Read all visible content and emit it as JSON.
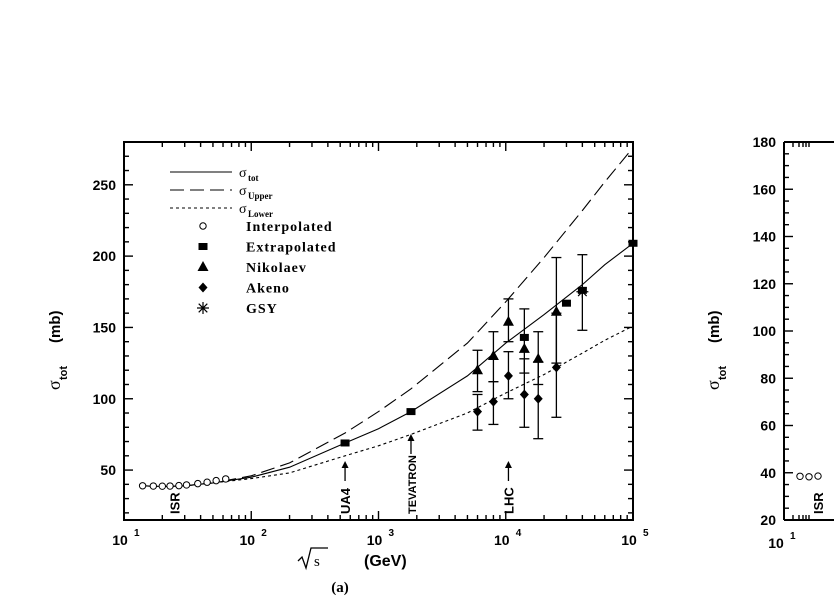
{
  "figure_label": "(a)",
  "chart_data": [
    {
      "type": "scatter",
      "panel": "(a)",
      "x_scale": "log",
      "xlim": [
        10,
        100000
      ],
      "ylim": [
        15,
        280
      ],
      "xlabel": "√s",
      "xlabel_unit": "(GeV)",
      "ylabel_symbol": "σ",
      "ylabel_subscript": "tot",
      "ylabel_unit": "(mb)",
      "x_ticks": [
        {
          "value": 10,
          "base": "10",
          "exp": "1"
        },
        {
          "value": 100,
          "base": "10",
          "exp": "2"
        },
        {
          "value": 1000,
          "base": "10",
          "exp": "3"
        },
        {
          "value": 10000,
          "base": "10",
          "exp": "4"
        },
        {
          "value": 100000,
          "base": "10",
          "exp": "5"
        }
      ],
      "y_ticks": [
        50,
        100,
        150,
        200,
        250
      ],
      "legend": [
        {
          "marker": "solid-line",
          "symbol": "σ",
          "sub": "tot"
        },
        {
          "marker": "dashed-line",
          "symbol": "σ",
          "sub": "Upper"
        },
        {
          "marker": "dotted-line",
          "symbol": "σ",
          "sub": "Lower"
        },
        {
          "marker": "open-circle",
          "label": "Interpolated"
        },
        {
          "marker": "square",
          "label": "Extrapolated"
        },
        {
          "marker": "triangle",
          "label": "Nikolaev"
        },
        {
          "marker": "diamond",
          "label": "Akeno"
        },
        {
          "marker": "asterisk",
          "label": "GSY"
        }
      ],
      "curves": [
        {
          "name": "σtot",
          "style": "solid",
          "x": [
            14,
            20,
            30,
            50,
            100,
            200,
            546,
            1000,
            1800,
            5000,
            10000,
            20000,
            40000,
            60000,
            100000
          ],
          "y": [
            39,
            38.5,
            39,
            41,
            45,
            52,
            69,
            79,
            91,
            116,
            139,
            159,
            180,
            194,
            209
          ]
        },
        {
          "name": "σUpper",
          "style": "dashed",
          "x": [
            14,
            20,
            30,
            50,
            100,
            200,
            546,
            1000,
            1800,
            5000,
            10000,
            20000,
            40000,
            60000,
            100000
          ],
          "y": [
            39,
            38.5,
            39,
            41,
            46,
            55,
            76,
            91,
            107,
            139,
            168,
            199,
            232,
            252,
            276
          ]
        },
        {
          "name": "σLower",
          "style": "dotted",
          "x": [
            14,
            20,
            30,
            50,
            100,
            200,
            546,
            1000,
            1800,
            5000,
            10000,
            20000,
            40000,
            60000,
            100000
          ],
          "y": [
            39,
            38.5,
            39,
            41,
            44,
            48,
            60,
            67,
            75,
            90,
            104,
            117,
            132,
            141,
            151
          ]
        }
      ],
      "series": [
        {
          "name": "Interpolated",
          "marker": "open-circle",
          "x": [
            14,
            17,
            20,
            23,
            27,
            31,
            38,
            45,
            53,
            63
          ],
          "y": [
            39,
            38.8,
            38.7,
            38.8,
            39.1,
            39.6,
            40.5,
            41.5,
            42.6,
            43.8
          ]
        },
        {
          "name": "Extrapolated",
          "marker": "square",
          "x": [
            546,
            1800,
            14000,
            30000,
            40000,
            100000
          ],
          "y": [
            69,
            91,
            143,
            167,
            176,
            209
          ]
        },
        {
          "name": "Nikolaev",
          "marker": "triangle",
          "x": [
            6000,
            8000,
            10500,
            14000,
            18000,
            25000
          ],
          "y": [
            120,
            130,
            154,
            135,
            128,
            161
          ],
          "err_low": [
            105,
            112,
            140,
            118,
            110,
            125
          ],
          "err_high": [
            134,
            147,
            170,
            163,
            147,
            199
          ]
        },
        {
          "name": "Akeno",
          "marker": "diamond",
          "x": [
            6000,
            8000,
            10500,
            14000,
            18000,
            25000
          ],
          "y": [
            91,
            98,
            116,
            103,
            100,
            122
          ],
          "err_low": [
            78,
            82,
            100,
            80,
            72,
            87
          ],
          "err_high": [
            103,
            112,
            133,
            128,
            126,
            160
          ]
        },
        {
          "name": "GSY",
          "marker": "asterisk",
          "x": [
            40000
          ],
          "y": [
            175
          ],
          "err_low": [
            148
          ],
          "err_high": [
            201
          ]
        }
      ],
      "annotations": [
        {
          "text": "ISR",
          "x": 25
        },
        {
          "text": "UA4",
          "x": 546,
          "arrow": true
        },
        {
          "text": "TEVATRON",
          "x": 1800,
          "arrow": true
        },
        {
          "text": "LHC",
          "x": 10500,
          "arrow": true
        }
      ]
    },
    {
      "type": "scatter",
      "panel": "right (cropped)",
      "ylim": [
        20,
        180
      ],
      "y_ticks": [
        20,
        40,
        60,
        80,
        100,
        120,
        140,
        160,
        180
      ],
      "ylabel_symbol": "σ",
      "ylabel_subscript": "tot",
      "ylabel_unit": "(mb)",
      "x_ticks": [
        {
          "value": 10,
          "base": "10",
          "exp": "1"
        }
      ],
      "series": [
        {
          "name": "Interpolated",
          "marker": "open-circle",
          "x": [
            14,
            17,
            20
          ],
          "y": [
            38.5,
            38.3,
            38.6
          ]
        }
      ],
      "annotations": [
        {
          "text": "ISR",
          "x": 25
        }
      ]
    }
  ]
}
